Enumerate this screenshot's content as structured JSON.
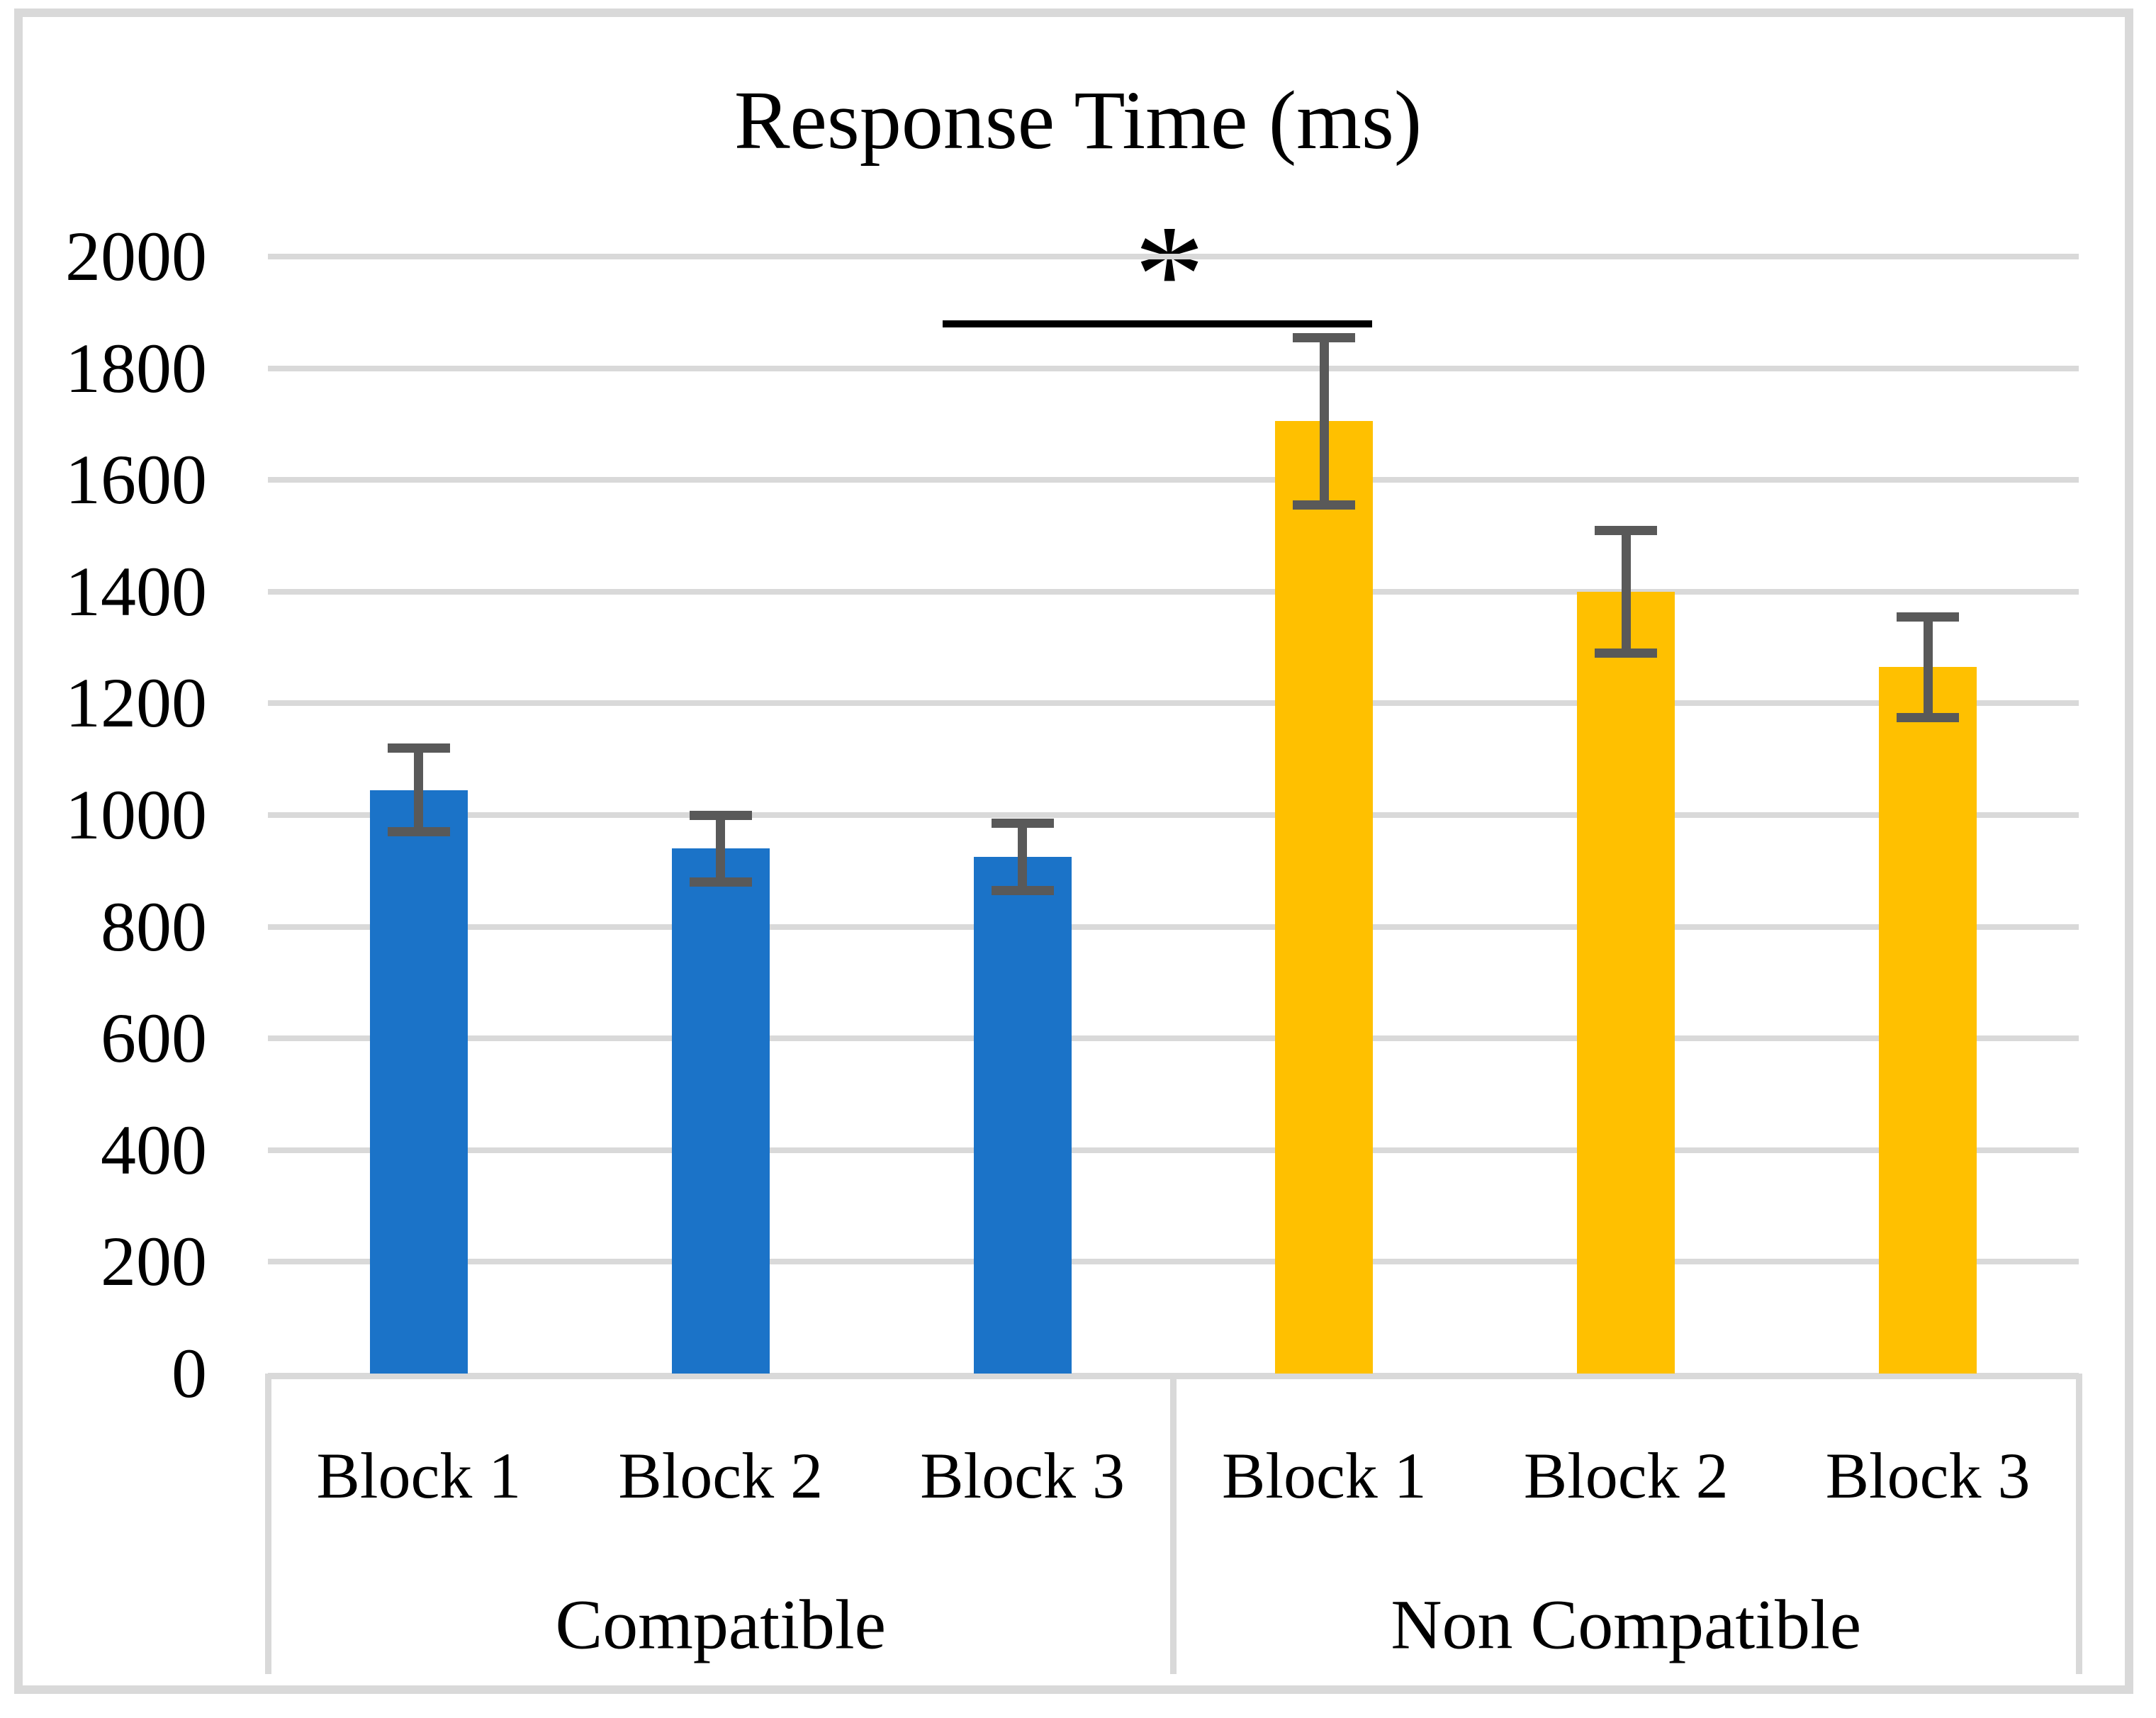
{
  "chart_data": {
    "type": "bar",
    "title": "Response Time (ms)",
    "y_axis": {
      "min": 0,
      "max": 2000,
      "step": 200,
      "tick_labels": [
        "0",
        "200",
        "400",
        "600",
        "800",
        "1000",
        "1200",
        "1400",
        "1600",
        "1800",
        "2000"
      ]
    },
    "x_axis": {
      "block_labels": [
        "Block 1",
        "Block 2",
        "Block 3"
      ],
      "group_labels": [
        "Compatible",
        "Non Compatible"
      ]
    },
    "series": [
      {
        "name": "Compatible",
        "color": "#1B73C8",
        "categories": [
          "Block 1",
          "Block 2",
          "Block 3"
        ],
        "values": [
          1045,
          940,
          925
        ],
        "error_low": [
          970,
          880,
          865
        ],
        "error_high": [
          1120,
          1000,
          985
        ]
      },
      {
        "name": "Non Compatible",
        "color": "#FFC000",
        "categories": [
          "Block 1",
          "Block 2",
          "Block 3"
        ],
        "values": [
          1705,
          1400,
          1265
        ],
        "error_low": [
          1555,
          1290,
          1175
        ],
        "error_high": [
          1855,
          1510,
          1355
        ]
      }
    ],
    "annotation": {
      "significance_symbol": "*",
      "between": [
        "Compatible Block 3",
        "Non Compatible Block 1"
      ]
    },
    "style": {
      "grid_color": "#D9D9D9",
      "frame_color": "#D9D9D9",
      "error_bar_color": "#595959",
      "text_color": "#000000",
      "background": "#FFFFFF"
    },
    "layout_hints": {
      "gridlines": "horizontal",
      "legend": "none",
      "error_bars": true,
      "category_axis_style": "two-level table"
    }
  }
}
